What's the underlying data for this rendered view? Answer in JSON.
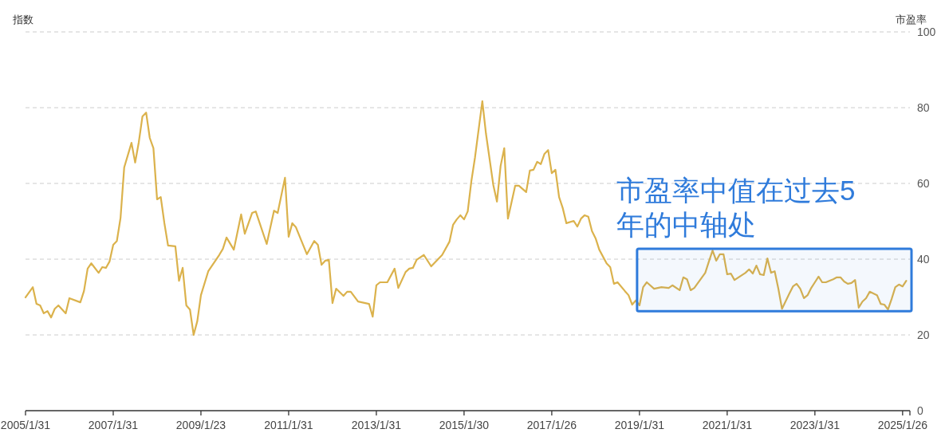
{
  "chart_data": {
    "type": "line",
    "ylabel": "指数",
    "y2label": "市盈率",
    "x": [
      "2005-01",
      "2005-03",
      "2005-04",
      "2005-05",
      "2005-06",
      "2005-07",
      "2005-08",
      "2005-09",
      "2005-10",
      "2005-12",
      "2006-01",
      "2006-04",
      "2006-05",
      "2006-06",
      "2006-07",
      "2006-09",
      "2006-10",
      "2006-11",
      "2006-12",
      "2007-01",
      "2007-02",
      "2007-03",
      "2007-04",
      "2007-06",
      "2007-07",
      "2007-08",
      "2007-09",
      "2007-10",
      "2007-11",
      "2007-12",
      "2008-01",
      "2008-02",
      "2008-03",
      "2008-04",
      "2008-06",
      "2008-07",
      "2008-08",
      "2008-09",
      "2008-10",
      "2008-11",
      "2008-12",
      "2009-01",
      "2009-03",
      "2009-06",
      "2009-07",
      "2009-08",
      "2009-10",
      "2009-12",
      "2010-01",
      "2010-03",
      "2010-04",
      "2010-07",
      "2010-09",
      "2010-10",
      "2010-12",
      "2011-01",
      "2011-02",
      "2011-03",
      "2011-06",
      "2011-08",
      "2011-09",
      "2011-10",
      "2011-11",
      "2011-12",
      "2012-01",
      "2012-02",
      "2012-04",
      "2012-05",
      "2012-06",
      "2012-08",
      "2012-09",
      "2012-11",
      "2012-12",
      "2013-01",
      "2013-02",
      "2013-04",
      "2013-06",
      "2013-07",
      "2013-09",
      "2013-10",
      "2013-11",
      "2013-12",
      "2014-02",
      "2014-04",
      "2014-07",
      "2014-09",
      "2014-10",
      "2014-11",
      "2014-12",
      "2015-01",
      "2015-02",
      "2015-03",
      "2015-04",
      "2015-06",
      "2015-07",
      "2015-09",
      "2015-10",
      "2015-11",
      "2015-12",
      "2016-01",
      "2016-03",
      "2016-04",
      "2016-06",
      "2016-07",
      "2016-08",
      "2016-09",
      "2016-10",
      "2016-11",
      "2016-12",
      "2017-01",
      "2017-02",
      "2017-03",
      "2017-04",
      "2017-05",
      "2017-07",
      "2017-08",
      "2017-09",
      "2017-10",
      "2017-11",
      "2017-12",
      "2018-01",
      "2018-02",
      "2018-04",
      "2018-05",
      "2018-06",
      "2018-07",
      "2018-09",
      "2018-10",
      "2018-11",
      "2018-12",
      "2019-01",
      "2019-02",
      "2019-03",
      "2019-05",
      "2019-07",
      "2019-09",
      "2019-10",
      "2019-12",
      "2020-01",
      "2020-02",
      "2020-03",
      "2020-04",
      "2020-07",
      "2020-08",
      "2020-09",
      "2020-10",
      "2020-11",
      "2020-12",
      "2021-01",
      "2021-02",
      "2021-03",
      "2021-06",
      "2021-07",
      "2021-08",
      "2021-09",
      "2021-10",
      "2021-11",
      "2021-12",
      "2022-01",
      "2022-02",
      "2022-03",
      "2022-04",
      "2022-06",
      "2022-07",
      "2022-08",
      "2022-09",
      "2022-10",
      "2022-11",
      "2022-12",
      "2023-01",
      "2023-02",
      "2023-03",
      "2023-04",
      "2023-06",
      "2023-07",
      "2023-08",
      "2023-09",
      "2023-10",
      "2023-11",
      "2023-12",
      "2024-01",
      "2024-02",
      "2024-03",
      "2024-04",
      "2024-06",
      "2024-07",
      "2024-08",
      "2024-09",
      "2024-10",
      "2024-11",
      "2024-12",
      "2025-01",
      "2025-02"
    ],
    "series": [
      {
        "color": "#dbb24c",
        "axis": "y2",
        "values": [
          29.9,
          32.6,
          28.2,
          27.8,
          25.7,
          26.3,
          24.6,
          26.9,
          27.8,
          25.7,
          29.7,
          28.6,
          31.6,
          37.5,
          38.9,
          36.4,
          37.9,
          37.7,
          39.4,
          43.8,
          44.8,
          50.9,
          64.2,
          70.7,
          65.5,
          70.9,
          77.7,
          78.7,
          72.0,
          69.3,
          55.8,
          56.4,
          49.5,
          43.6,
          43.4,
          34.3,
          37.7,
          27.8,
          26.7,
          20.0,
          23.6,
          30.5,
          36.8,
          41.1,
          42.7,
          45.7,
          42.5,
          51.8,
          46.7,
          52.2,
          52.6,
          44.0,
          52.8,
          52.2,
          61.5,
          45.9,
          49.5,
          48.4,
          41.3,
          44.8,
          43.8,
          38.5,
          39.6,
          39.8,
          28.4,
          32.2,
          30.3,
          31.4,
          31.4,
          28.8,
          28.6,
          28.2,
          24.8,
          33.1,
          33.9,
          33.9,
          37.5,
          32.4,
          36.6,
          37.5,
          37.7,
          39.8,
          41.1,
          38.1,
          41.1,
          44.6,
          49.1,
          50.5,
          51.6,
          50.5,
          52.6,
          60.6,
          66.9,
          81.7,
          73.1,
          59.6,
          55.2,
          64.6,
          69.3,
          50.7,
          59.4,
          59.4,
          57.7,
          63.4,
          63.6,
          65.7,
          65.1,
          67.8,
          68.8,
          62.7,
          63.6,
          56.4,
          53.5,
          49.5,
          50.1,
          48.6,
          50.7,
          51.6,
          51.2,
          47.4,
          45.5,
          42.5,
          38.9,
          37.9,
          33.5,
          33.9,
          31.6,
          30.5,
          28.0,
          29.1,
          27.8,
          32.6,
          33.9,
          32.2,
          32.6,
          32.4,
          33.1,
          31.8,
          35.2,
          34.7,
          31.8,
          32.4,
          36.4,
          39.4,
          42.3,
          39.6,
          41.3,
          41.3,
          36.0,
          36.2,
          34.5,
          36.4,
          37.3,
          36.2,
          38.3,
          36.0,
          35.8,
          40.2,
          36.4,
          36.8,
          32.2,
          26.9,
          30.9,
          32.8,
          33.5,
          32.2,
          29.7,
          30.5,
          32.4,
          33.9,
          35.4,
          33.9,
          33.9,
          34.7,
          35.2,
          35.2,
          34.1,
          33.5,
          33.7,
          34.5,
          27.2,
          28.8,
          29.7,
          31.4,
          30.5,
          28.2,
          28.0,
          26.7,
          29.5,
          32.6,
          33.3,
          32.8,
          34.3
        ]
      }
    ],
    "xlim": [
      "2005-01",
      "2025-03"
    ],
    "xticks": [
      {
        "value": "2005-01",
        "label": "2005/1/31"
      },
      {
        "value": "2007-01",
        "label": "2007/1/31"
      },
      {
        "value": "2009-01",
        "label": "2009/1/23"
      },
      {
        "value": "2011-01",
        "label": "2011/1/31"
      },
      {
        "value": "2013-01",
        "label": "2013/1/31"
      },
      {
        "value": "2015-01",
        "label": "2015/1/30"
      },
      {
        "value": "2017-01",
        "label": "2017/1/26"
      },
      {
        "value": "2019-01",
        "label": "2019/1/31"
      },
      {
        "value": "2021-01",
        "label": "2021/1/31"
      },
      {
        "value": "2023-01",
        "label": "2023/1/31"
      },
      {
        "value": "2025-01",
        "label": "2025/1/26"
      },
      {
        "value": "2025-03",
        "label": null
      }
    ],
    "y2lim": [
      0,
      100
    ],
    "y2ticks": [
      0,
      20,
      40,
      60,
      80,
      100
    ],
    "grid": "y",
    "bands": [
      {
        "axis": "x",
        "from": "2019-01",
        "to": "2025-03",
        "label": "市盈率中值在过去5年的中轴处",
        "color": "#2f7bdb"
      }
    ]
  }
}
